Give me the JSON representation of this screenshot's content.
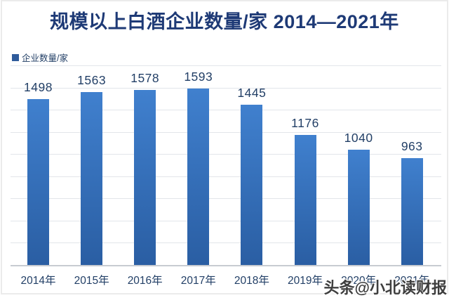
{
  "title": "规模以上白酒企业数量/家 2014—2021年",
  "legend": {
    "label": "企业数量/家",
    "marker_color": "#2F5B9B"
  },
  "watermark": {
    "text": "头条@小北读财报"
  },
  "colors": {
    "title": "#1E3A76",
    "label": "#223F66",
    "bar_top": "#4080CE",
    "bar_bottom": "#2A5EA3",
    "gridline": "#E2E5EA",
    "axis": "#C7CBD1",
    "watermark": "#3E3E3E"
  },
  "chart_data": {
    "type": "bar",
    "title": "规模以上白酒企业数量/家 2014—2021年",
    "series_name": "企业数量/家",
    "categories": [
      "2014年",
      "2015年",
      "2016年",
      "2017年",
      "2018年",
      "2019年",
      "2020年",
      "2021年"
    ],
    "values": [
      1498,
      1563,
      1578,
      1593,
      1445,
      1176,
      1040,
      963
    ],
    "ylim": [
      0,
      1800
    ],
    "gridline_interval": 200,
    "grid": true,
    "y_axis_tick_labels_visible": false,
    "data_labels": true,
    "legend_position": "top-left"
  }
}
